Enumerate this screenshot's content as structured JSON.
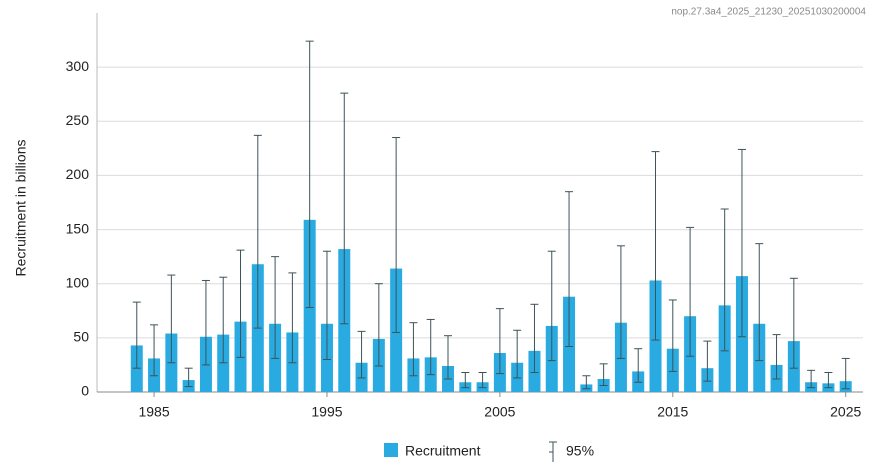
{
  "chart_data": {
    "type": "bar",
    "watermark": "nop.27.3a4_2025_21230_20251030200004",
    "y_label": "Recruitment in billions",
    "x": [
      1984,
      1985,
      1986,
      1987,
      1988,
      1989,
      1990,
      1991,
      1992,
      1993,
      1994,
      1995,
      1996,
      1997,
      1998,
      1999,
      2000,
      2001,
      2002,
      2003,
      2004,
      2005,
      2006,
      2007,
      2008,
      2009,
      2010,
      2011,
      2012,
      2013,
      2014,
      2015,
      2016,
      2017,
      2018,
      2019,
      2020,
      2021,
      2022,
      2023,
      2024,
      2025
    ],
    "series": [
      {
        "name": "Recruitment",
        "color": "#29abe2",
        "values": [
          43,
          31,
          54,
          11,
          51,
          53,
          65,
          118,
          63,
          55,
          159,
          63,
          132,
          27,
          49,
          114,
          31,
          32,
          24,
          9,
          9,
          36,
          27,
          38,
          61,
          88,
          7,
          12,
          64,
          19,
          103,
          40,
          70,
          22,
          80,
          107,
          63,
          25,
          47,
          9,
          8,
          10
        ],
        "error_name": "95%",
        "error_color": "#3d5358",
        "lower": [
          22,
          15,
          27,
          5,
          25,
          27,
          32,
          59,
          31,
          27,
          78,
          30,
          63,
          13,
          24,
          55,
          15,
          16,
          12,
          4,
          4,
          17,
          13,
          18,
          29,
          42,
          3,
          6,
          31,
          9,
          48,
          19,
          33,
          10,
          38,
          51,
          29,
          12,
          22,
          4,
          4,
          3
        ],
        "upper": [
          83,
          62,
          108,
          22,
          103,
          106,
          131,
          237,
          125,
          110,
          324,
          130,
          276,
          56,
          100,
          235,
          64,
          67,
          52,
          18,
          18,
          77,
          57,
          81,
          130,
          185,
          15,
          26,
          135,
          40,
          222,
          85,
          152,
          47,
          169,
          224,
          137,
          53,
          105,
          20,
          18,
          31
        ]
      }
    ],
    "xlim": [
      1981.7,
      2026
    ],
    "xticks": [
      1985,
      1995,
      2005,
      2015,
      2025
    ],
    "ylim": [
      0,
      350
    ],
    "yticks": [
      0,
      50,
      100,
      150,
      200,
      250,
      300
    ],
    "grid": true
  }
}
